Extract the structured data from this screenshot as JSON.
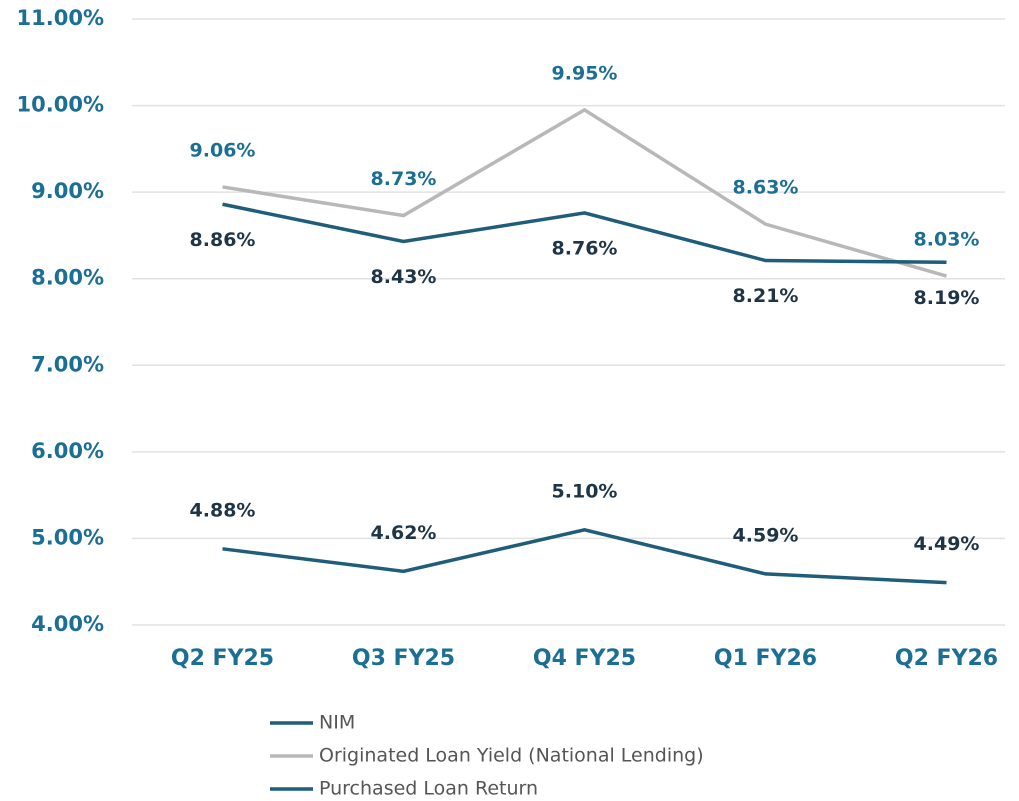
{
  "chart_data": {
    "type": "line",
    "categories": [
      "Q2 FY25",
      "Q3 FY25",
      "Q4 FY25",
      "Q1 FY26",
      "Q2 FY26"
    ],
    "series": [
      {
        "name": "NIM",
        "color": "#1f5d7a",
        "label_color": "#1e3547",
        "values": [
          4.88,
          4.62,
          5.1,
          4.59,
          4.49
        ],
        "value_labels": [
          "4.88%",
          "4.62%",
          "5.10%",
          "4.59%",
          "4.49%"
        ]
      },
      {
        "name": "Originated Loan Yield (National Lending)",
        "color": "#b8b8b8",
        "label_color": "#1b6e94",
        "values": [
          9.06,
          8.73,
          9.95,
          8.63,
          8.03
        ],
        "value_labels": [
          "9.06%",
          "8.73%",
          "9.95%",
          "8.63%",
          "8.03%"
        ]
      },
      {
        "name": "Purchased Loan Return",
        "color": "#1f5d7a",
        "label_color": "#1e3547",
        "values": [
          8.86,
          8.43,
          8.76,
          8.21,
          8.19
        ],
        "value_labels": [
          "8.86%",
          "8.43%",
          "8.76%",
          "8.21%",
          "8.19%"
        ]
      }
    ],
    "ylim": [
      4,
      11
    ],
    "yticks": [
      {
        "value": 4,
        "label": "4.00%"
      },
      {
        "value": 5,
        "label": "5.00%"
      },
      {
        "value": 6,
        "label": "6.00%"
      },
      {
        "value": 7,
        "label": "7.00%"
      },
      {
        "value": 8,
        "label": "8.00%"
      },
      {
        "value": 9,
        "label": "9.00%"
      },
      {
        "value": 10,
        "label": "10.00%"
      },
      {
        "value": 11,
        "label": "11.00%"
      }
    ],
    "grid": true,
    "legend": "bottom"
  }
}
